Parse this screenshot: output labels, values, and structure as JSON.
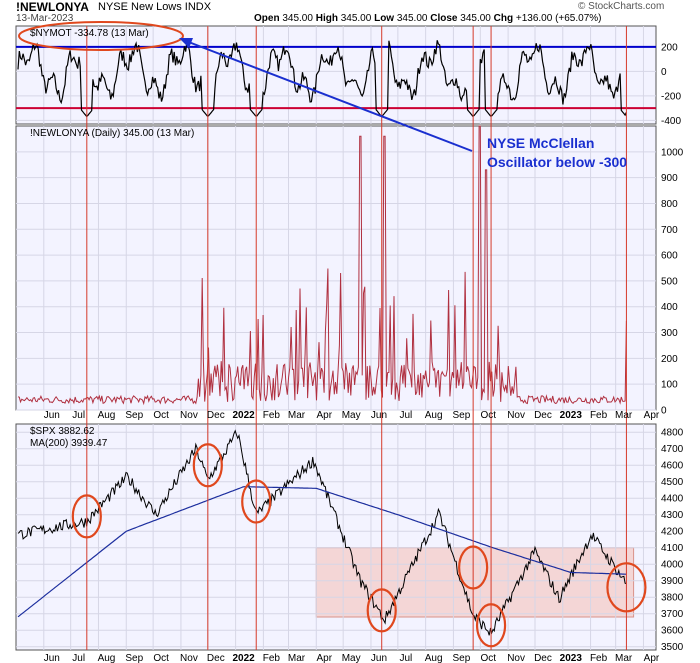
{
  "header": {
    "symbol": "!NEWLONYA",
    "name": "NYSE New Lows INDX",
    "date": "13-Mar-2023",
    "open_label": "Open",
    "open": "345.00",
    "high_label": "High",
    "high": "345.00",
    "low_label": "Low",
    "low": "345.00",
    "close_label": "Close",
    "close": "345.00",
    "chg_label": "Chg",
    "chg": "+136.00 (+65.07%)",
    "watermark": "© StockCharts.com"
  },
  "annotation": {
    "text_line1": "NYSE McClellan",
    "text_line2": "Oscillator below -300"
  },
  "colors": {
    "price_line": "#000000",
    "ma_line": "#1c2e9e",
    "threshold_blue": "#0000cc",
    "threshold_red": "#cc0033",
    "vline": "#d63a2a",
    "circle": "#e0481e",
    "newlows_line": "#b03040",
    "zone_fill": "#f4c9c4",
    "panel_bg": "#f3f3ff",
    "arrow": "#1a2fcf"
  },
  "chart_data": [
    {
      "type": "line",
      "title": "$NYMOT -334.78 (13 Mar)",
      "series": [
        {
          "name": "$NYMOT",
          "last": -334.78
        }
      ],
      "ylim": [
        -430,
        370
      ],
      "yticks": [
        -400,
        -200,
        0,
        200
      ],
      "reference_lines": [
        {
          "value": 200,
          "color": "blue"
        },
        {
          "value": -300,
          "color": "red"
        }
      ],
      "grid": true
    },
    {
      "type": "line",
      "title": "!NEWLONYA (Daily) 345.00 (13 Mar)",
      "series": [
        {
          "name": "!NEWLONYA",
          "last": 345.0
        }
      ],
      "ylim": [
        0,
        1100
      ],
      "yticks": [
        0,
        100,
        200,
        300,
        400,
        500,
        600,
        700,
        800,
        900,
        1000
      ],
      "peaks": [
        {
          "x": "2022-05-20",
          "y": 1060
        },
        {
          "x": "2022-06-16",
          "y": 1060
        },
        {
          "x": "2022-09-30",
          "y": 1110
        },
        {
          "x": "2022-10-07",
          "y": 930
        }
      ],
      "grid": true
    },
    {
      "type": "line",
      "title": "$SPX 3882.62",
      "series": [
        {
          "name": "$SPX",
          "last": 3882.62
        },
        {
          "name": "MA(200)",
          "last": 3939.47
        }
      ],
      "ylim": [
        3480,
        4850
      ],
      "yticks": [
        3500,
        3600,
        3700,
        3800,
        3900,
        4000,
        4100,
        4200,
        4300,
        4400,
        4500,
        4600,
        4700,
        4800
      ],
      "highlight_zone": [
        3680,
        4100
      ],
      "grid": true
    }
  ],
  "x_axis": {
    "tick_labels": [
      "Jun",
      "Jul",
      "Aug",
      "Sep",
      "Oct",
      "Nov",
      "Dec",
      "2022",
      "Feb",
      "Mar",
      "Apr",
      "May",
      "Jun",
      "Jul",
      "Aug",
      "Sep",
      "Oct",
      "Nov",
      "Dec",
      "2023",
      "Feb",
      "Mar",
      "Apr"
    ],
    "signal_dates": [
      "2021-07-19",
      "2021-12-01",
      "2022-01-24",
      "2022-06-13",
      "2022-09-23",
      "2022-10-13",
      "2023-03-13"
    ]
  },
  "labels": {
    "nymo_legend": "$NYMOT -334.78 (13 Mar)",
    "newlows_legend": "!NEWLONYA (Daily) 345.00 (13 Mar)",
    "spx_legend": "$SPX 3882.62",
    "ma_legend": "MA(200) 3939.47"
  }
}
